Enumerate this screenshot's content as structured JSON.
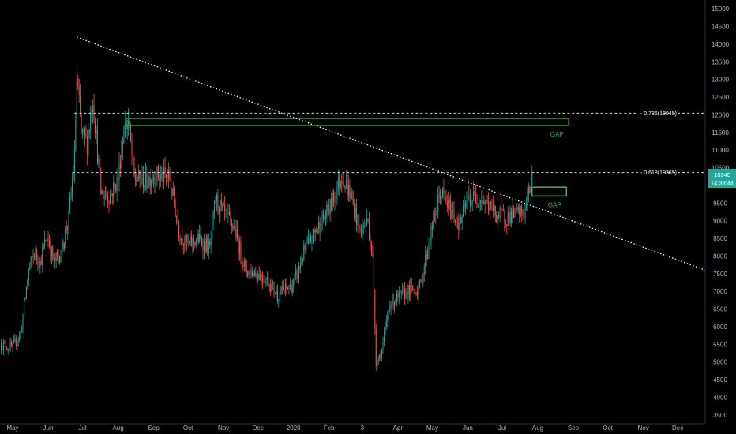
{
  "chart_data": {
    "type": "candlestick",
    "title": "",
    "xlabel": "",
    "ylabel": "",
    "ylim": [
      3250,
      15250
    ],
    "y_ticks": [
      3500,
      4000,
      4500,
      5000,
      5500,
      6000,
      6500,
      7000,
      7500,
      8000,
      8500,
      9000,
      9500,
      10000,
      10500,
      11000,
      11500,
      12000,
      12500,
      13000,
      13500,
      14000,
      14500,
      15000
    ],
    "x_range": [
      "2019-04-20",
      "2020-12-25"
    ],
    "x_ticks": [
      {
        "date": "2019-05-01",
        "label": "May"
      },
      {
        "date": "2019-06-01",
        "label": "Jun"
      },
      {
        "date": "2019-07-01",
        "label": "Jul"
      },
      {
        "date": "2019-08-01",
        "label": "Aug"
      },
      {
        "date": "2019-09-01",
        "label": "Sep"
      },
      {
        "date": "2019-10-01",
        "label": "Oct"
      },
      {
        "date": "2019-11-01",
        "label": "Nov"
      },
      {
        "date": "2019-12-01",
        "label": "Dec"
      },
      {
        "date": "2020-01-01",
        "label": "2020"
      },
      {
        "date": "2020-02-01",
        "label": "Feb"
      },
      {
        "date": "2020-03-01",
        "label": "3"
      },
      {
        "date": "2020-04-01",
        "label": "Apr"
      },
      {
        "date": "2020-05-01",
        "label": "May"
      },
      {
        "date": "2020-06-01",
        "label": "Jun"
      },
      {
        "date": "2020-07-01",
        "label": "Jul"
      },
      {
        "date": "2020-08-01",
        "label": "Aug"
      },
      {
        "date": "2020-09-01",
        "label": "Sep"
      },
      {
        "date": "2020-10-01",
        "label": "Oct"
      },
      {
        "date": "2020-11-01",
        "label": "Nov"
      },
      {
        "date": "2020-12-01",
        "label": "Dec"
      }
    ],
    "price_path": [
      [
        "2019-04-20",
        5500
      ],
      [
        "2019-05-01",
        5400
      ],
      [
        "2019-05-08",
        5800
      ],
      [
        "2019-05-15",
        7600
      ],
      [
        "2019-05-20",
        8100
      ],
      [
        "2019-05-25",
        7800
      ],
      [
        "2019-05-31",
        8600
      ],
      [
        "2019-06-06",
        7800
      ],
      [
        "2019-06-12",
        8100
      ],
      [
        "2019-06-19",
        9100
      ],
      [
        "2019-06-24",
        10800
      ],
      [
        "2019-06-26",
        13000
      ],
      [
        "2019-06-30",
        11500
      ],
      [
        "2019-07-05",
        11200
      ],
      [
        "2019-07-10",
        12500
      ],
      [
        "2019-07-17",
        9800
      ],
      [
        "2019-07-25",
        9700
      ],
      [
        "2019-08-01",
        10200
      ],
      [
        "2019-08-06",
        11600
      ],
      [
        "2019-08-10",
        11800
      ],
      [
        "2019-08-15",
        10200
      ],
      [
        "2019-08-25",
        10100
      ],
      [
        "2019-09-01",
        10300
      ],
      [
        "2019-09-15",
        10200
      ],
      [
        "2019-09-24",
        8600
      ],
      [
        "2019-10-01",
        8300
      ],
      [
        "2019-10-10",
        8500
      ],
      [
        "2019-10-20",
        8200
      ],
      [
        "2019-10-25",
        9600
      ],
      [
        "2019-11-01",
        9200
      ],
      [
        "2019-11-10",
        8800
      ],
      [
        "2019-11-20",
        7600
      ],
      [
        "2019-12-01",
        7500
      ],
      [
        "2019-12-10",
        7300
      ],
      [
        "2019-12-18",
        6900
      ],
      [
        "2020-01-01",
        7200
      ],
      [
        "2020-01-10",
        8100
      ],
      [
        "2020-01-20",
        8700
      ],
      [
        "2020-02-01",
        9300
      ],
      [
        "2020-02-12",
        10300
      ],
      [
        "2020-02-20",
        9700
      ],
      [
        "2020-02-28",
        8700
      ],
      [
        "2020-03-06",
        9000
      ],
      [
        "2020-03-10",
        7900
      ],
      [
        "2020-03-13",
        5000
      ],
      [
        "2020-03-18",
        5300
      ],
      [
        "2020-03-25",
        6700
      ],
      [
        "2020-04-01",
        6800
      ],
      [
        "2020-04-10",
        7000
      ],
      [
        "2020-04-20",
        7100
      ],
      [
        "2020-04-30",
        8700
      ],
      [
        "2020-05-08",
        9800
      ],
      [
        "2020-05-15",
        9400
      ],
      [
        "2020-05-25",
        8900
      ],
      [
        "2020-06-01",
        9600
      ],
      [
        "2020-06-10",
        9700
      ],
      [
        "2020-06-20",
        9400
      ],
      [
        "2020-06-27",
        9150
      ],
      [
        "2020-07-05",
        9100
      ],
      [
        "2020-07-15",
        9200
      ],
      [
        "2020-07-20",
        9200
      ],
      [
        "2020-07-25",
        9900
      ],
      [
        "2020-07-27",
        10340
      ]
    ],
    "trend_line": {
      "from": [
        "2019-06-26",
        14200
      ],
      "to": [
        "2020-12-25",
        7600
      ],
      "style": "dotted",
      "color": "#ffffff"
    },
    "levels": [
      {
        "label": "0.786(12045)",
        "value": 12045,
        "from": "2019-06-24"
      },
      {
        "label": "0.618(10365)",
        "value": 10365,
        "from": "2019-06-22"
      }
    ],
    "zones": [
      {
        "label": "GAP",
        "from": "2019-08-08",
        "to": "2020-08-28",
        "low": 11700,
        "high": 11900,
        "color": "#4caf50"
      },
      {
        "label": "GAP",
        "from": "2020-07-27",
        "to": "2020-08-26",
        "low": 9700,
        "high": 9950,
        "color": "#4caf50"
      }
    ],
    "last_price": {
      "value": "10340",
      "time": "14:38:44",
      "color": "#26a69a"
    },
    "colors": {
      "up": "#26a69a",
      "down": "#ef5350",
      "background": "#000000"
    }
  }
}
